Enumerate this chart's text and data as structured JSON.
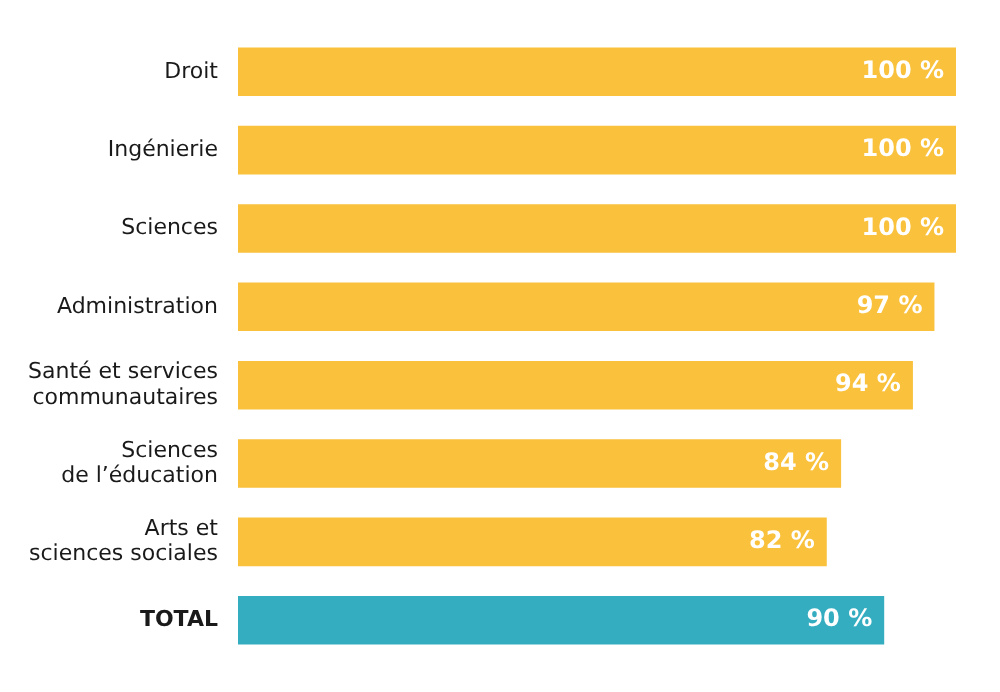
{
  "chart_data": {
    "type": "bar",
    "orientation": "horizontal",
    "categories": [
      "Droit",
      "Ingénierie",
      "Sciences",
      "Administration",
      "Santé et services\ncommunautaires",
      "Sciences\nde l’éducation",
      "Arts et\nsciences sociales",
      "TOTAL"
    ],
    "values": [
      100,
      100,
      100,
      97,
      94,
      84,
      82,
      90
    ],
    "value_labels": [
      "100 %",
      "100 %",
      "100 %",
      "97 %",
      "94 %",
      "84 %",
      "82 %",
      "90 %"
    ],
    "colors": [
      "#f9c13c",
      "#f9c13c",
      "#f9c13c",
      "#f9c13c",
      "#f9c13c",
      "#f9c13c",
      "#f9c13c",
      "#35adc1"
    ],
    "legend": false
  }
}
